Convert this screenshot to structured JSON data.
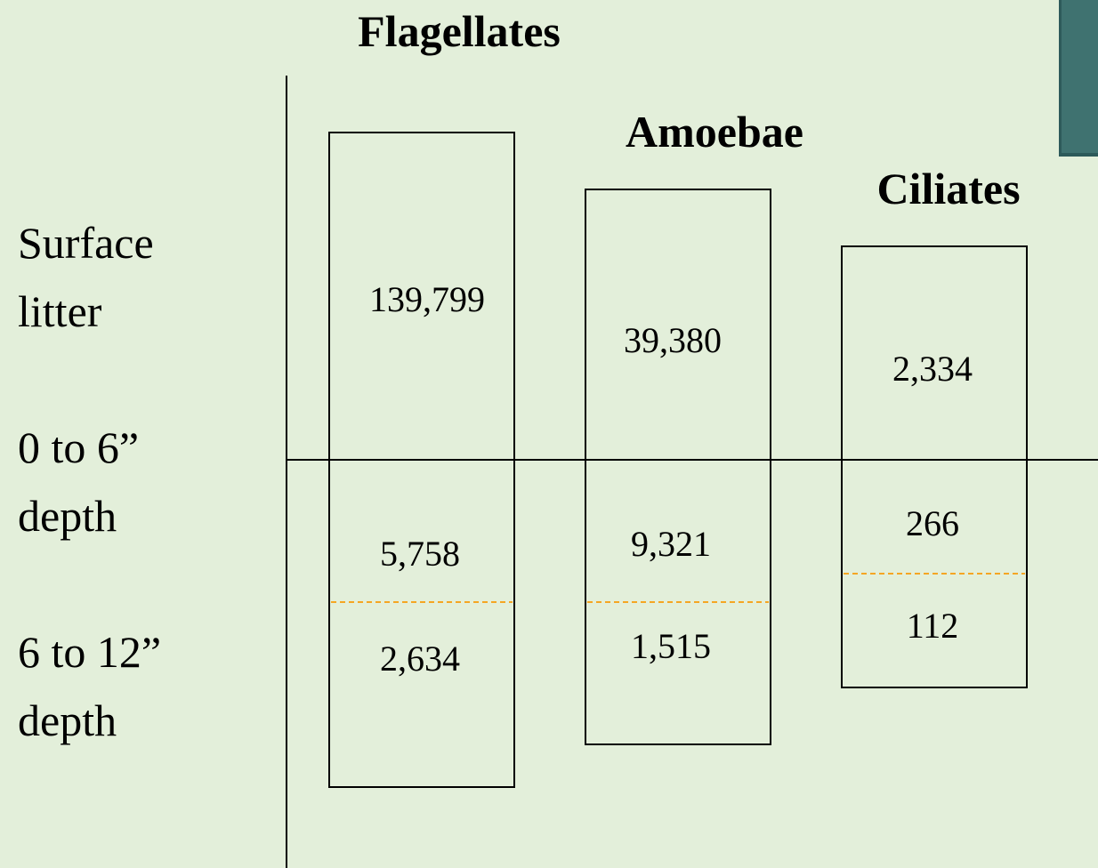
{
  "rows": [
    {
      "lines": [
        "Surface",
        "litter"
      ]
    },
    {
      "lines": [
        "0 to 6”",
        "depth"
      ]
    },
    {
      "lines": [
        "6 to 12”",
        "depth"
      ]
    }
  ],
  "columns": [
    {
      "name": "Flagellates",
      "values": [
        "139,799",
        "5,758",
        "2,634"
      ]
    },
    {
      "name": "Amoebae",
      "values": [
        "39,380",
        "9,321",
        "1,515"
      ]
    },
    {
      "name": "Ciliates",
      "values": [
        "2,334",
        "266",
        "112"
      ]
    }
  ]
}
